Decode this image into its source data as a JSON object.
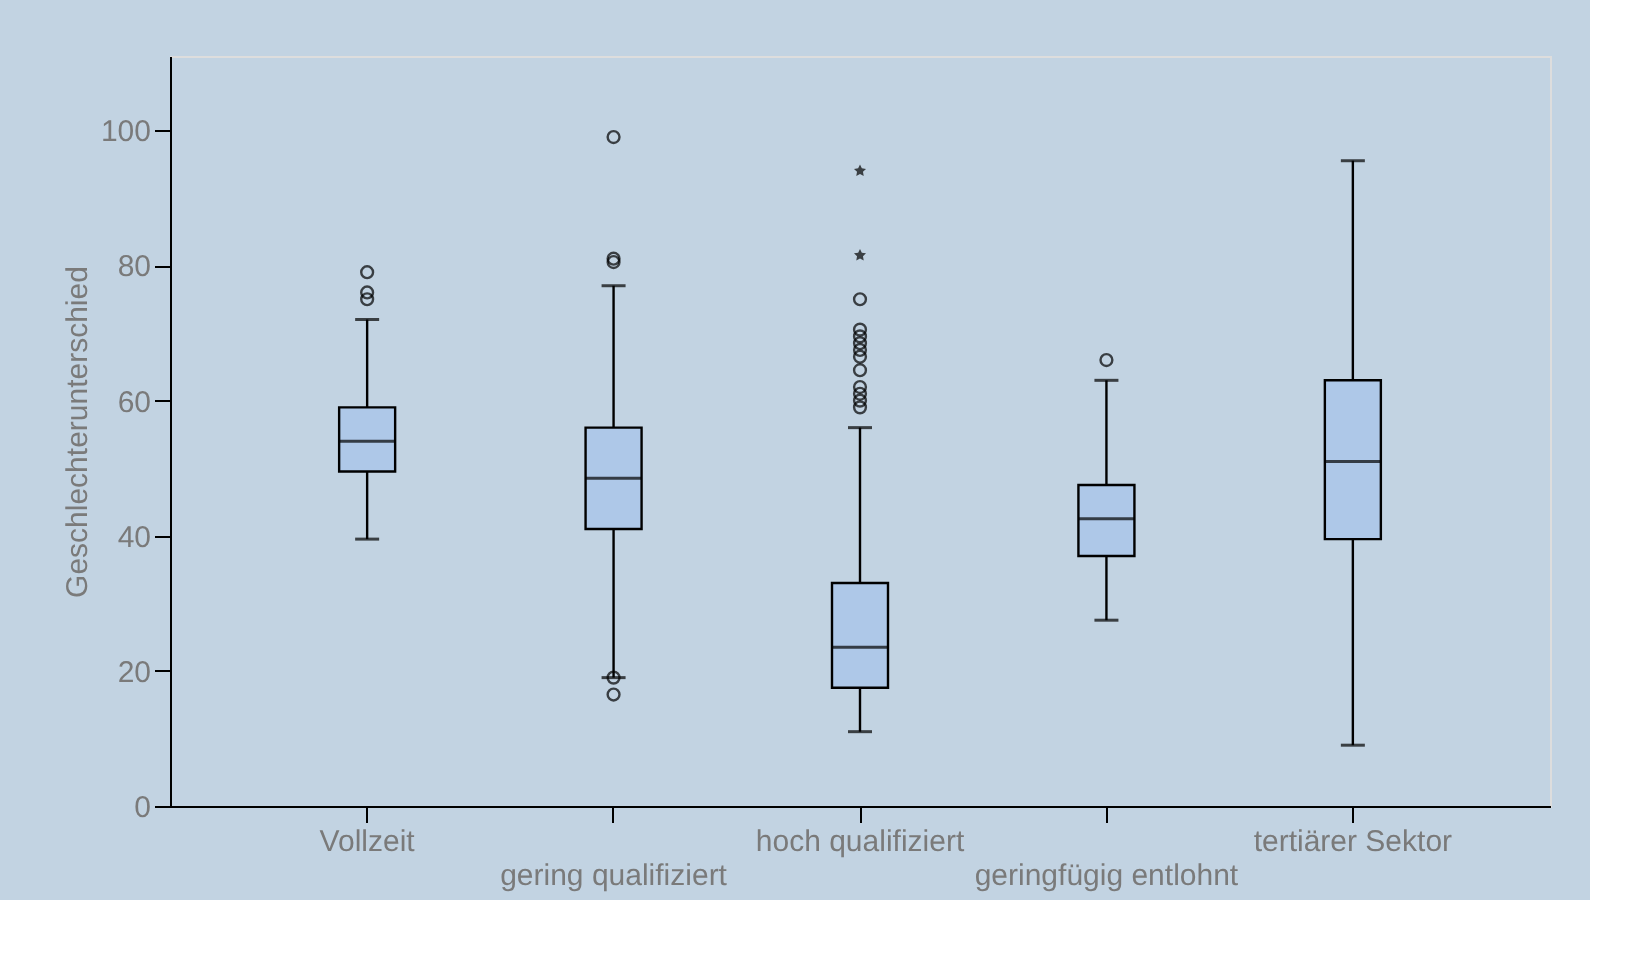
{
  "chart_data": {
    "type": "box",
    "ylabel": "Geschlechterunterschied",
    "categories": [
      "Vollzeit",
      "gering qualifiziert",
      "hoch qualifiziert",
      "geringfügig entlohnt",
      "tertiärer Sektor"
    ],
    "boxes": [
      {
        "low": 39.5,
        "q1": 49.5,
        "median": 54,
        "q3": 59,
        "high": 72,
        "outliers": [
          75,
          76,
          79
        ]
      },
      {
        "low": 19,
        "q1": 41,
        "median": 48.5,
        "q3": 56,
        "high": 77,
        "outliers": [
          16.5,
          19,
          80.5,
          81,
          99
        ]
      },
      {
        "low": 11,
        "q1": 17.5,
        "median": 23.5,
        "q3": 33,
        "high": 56,
        "outliers": [
          59,
          60,
          61,
          62,
          64.5,
          66.5,
          67.5,
          68.5,
          69.5,
          70.5,
          75
        ]
      },
      {
        "low": 27.5,
        "q1": 37,
        "median": 42.5,
        "q3": 47.5,
        "high": 63,
        "outliers": [
          66
        ]
      },
      {
        "low": 9,
        "q1": 39.5,
        "median": 51,
        "q3": 63,
        "high": 95.5
      }
    ],
    "series": [
      {
        "type": "scatter",
        "marker": "star",
        "color": "#000000",
        "x": [
          "hoch qualifiziert",
          "hoch qualifiziert"
        ],
        "values": [
          81.5,
          94
        ]
      }
    ],
    "color": "#aec8e8",
    "ylim": [
      0,
      111
    ],
    "yticks": [
      0,
      20,
      40,
      60,
      80,
      100
    ],
    "grid": false
  }
}
